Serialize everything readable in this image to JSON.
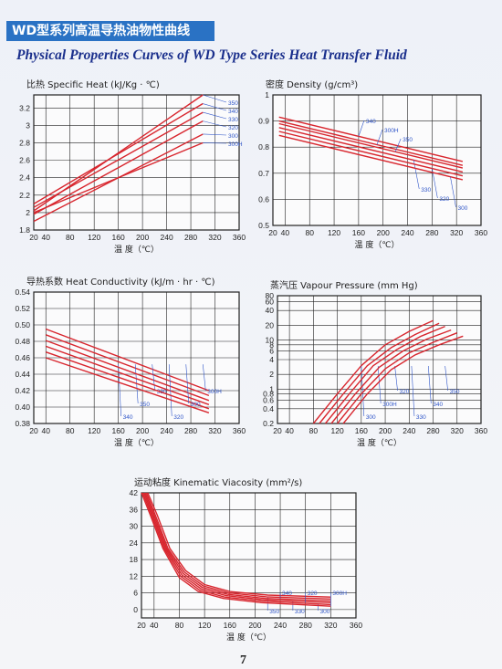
{
  "header": {
    "cn_title": "WD型系列高温导热油物性曲线",
    "en_title": "Physical Properties Curves of WD Type Series Heat Transfer Fluid"
  },
  "page_number": "7",
  "colors": {
    "accent": "#2a72c4",
    "curve": "#d8262e",
    "grid": "#222222",
    "annotation": "#2f55c8",
    "title_text": "#1a2f8c"
  },
  "chart_data": [
    {
      "id": "specific-heat",
      "type": "line",
      "title": "比热 Specific Heat (kJ/Kg · ℃)",
      "xlabel": "温 度（℃）",
      "xticks": [
        20,
        40,
        80,
        120,
        160,
        200,
        240,
        280,
        320,
        360
      ],
      "xlim": [
        20,
        360
      ],
      "yticks": [
        1.8,
        2.0,
        2.2,
        2.4,
        2.6,
        2.8,
        3.0,
        3.2
      ],
      "ylim": [
        1.8,
        3.35
      ],
      "scale": "linear",
      "series": [
        {
          "name": "350",
          "x": [
            20,
            300
          ],
          "y": [
            2.02,
            3.35
          ]
        },
        {
          "name": "340",
          "x": [
            20,
            300
          ],
          "y": [
            2.1,
            3.25
          ]
        },
        {
          "name": "330",
          "x": [
            20,
            300
          ],
          "y": [
            2.06,
            3.15
          ]
        },
        {
          "name": "320",
          "x": [
            20,
            300
          ],
          "y": [
            1.98,
            3.05
          ]
        },
        {
          "name": "300",
          "x": [
            20,
            300
          ],
          "y": [
            1.9,
            2.9
          ]
        },
        {
          "name": "300H",
          "x": [
            20,
            300
          ],
          "y": [
            2.0,
            2.8
          ]
        }
      ]
    },
    {
      "id": "density",
      "type": "line",
      "title": "密度 Density (g/cm³)",
      "xlabel": "温 度（℃）",
      "xticks": [
        20,
        40,
        80,
        120,
        160,
        200,
        240,
        280,
        320,
        360
      ],
      "xlim": [
        20,
        360
      ],
      "yticks": [
        0.5,
        0.6,
        0.7,
        0.8,
        0.9,
        1.0
      ],
      "ylim": [
        0.5,
        1.0
      ],
      "scale": "linear",
      "series": [
        {
          "name": "340",
          "x": [
            30,
            330
          ],
          "y": [
            0.915,
            0.745
          ]
        },
        {
          "name": "300H",
          "x": [
            30,
            330
          ],
          "y": [
            0.9,
            0.73
          ]
        },
        {
          "name": "350",
          "x": [
            30,
            330
          ],
          "y": [
            0.89,
            0.72
          ]
        },
        {
          "name": "330",
          "x": [
            30,
            330
          ],
          "y": [
            0.875,
            0.705
          ]
        },
        {
          "name": "320",
          "x": [
            30,
            330
          ],
          "y": [
            0.86,
            0.69
          ]
        },
        {
          "name": "300",
          "x": [
            30,
            330
          ],
          "y": [
            0.845,
            0.675
          ]
        }
      ]
    },
    {
      "id": "heat-conductivity",
      "type": "line",
      "title": "导热系数 Heat Conductivity (kJ/m · hr · ℃)",
      "xlabel": "温 度（℃）",
      "xticks": [
        20,
        40,
        80,
        120,
        160,
        200,
        240,
        280,
        320,
        360
      ],
      "xlim": [
        20,
        360
      ],
      "yticks": [
        0.38,
        0.4,
        0.42,
        0.44,
        0.46,
        0.48,
        0.5,
        0.52,
        0.54
      ],
      "ylim": [
        0.38,
        0.54
      ],
      "scale": "linear",
      "series": [
        {
          "name": "340",
          "x": [
            40,
            310
          ],
          "y": [
            0.495,
            0.42
          ]
        },
        {
          "name": "350",
          "x": [
            40,
            310
          ],
          "y": [
            0.488,
            0.414
          ]
        },
        {
          "name": "330",
          "x": [
            40,
            310
          ],
          "y": [
            0.481,
            0.408
          ]
        },
        {
          "name": "320",
          "x": [
            40,
            310
          ],
          "y": [
            0.474,
            0.403
          ]
        },
        {
          "name": "300",
          "x": [
            40,
            310
          ],
          "y": [
            0.467,
            0.398
          ]
        },
        {
          "name": "300H",
          "x": [
            40,
            310
          ],
          "y": [
            0.46,
            0.393
          ]
        }
      ]
    },
    {
      "id": "vapour-pressure",
      "type": "line",
      "title": "蒸汽压 Vapour Pressure (mm Hg)",
      "xlabel": "温 度（℃）",
      "xticks": [
        20,
        40,
        80,
        120,
        160,
        200,
        240,
        280,
        320,
        360
      ],
      "xlim": [
        20,
        360
      ],
      "yticks": [
        0.2,
        0.4,
        0.6,
        0.8,
        1,
        2,
        4,
        6,
        8,
        10,
        20,
        40,
        60,
        80
      ],
      "ytick_labels": [
        "0.2",
        "0.4",
        "0.6",
        "0.8",
        "1",
        "2",
        "4",
        "6",
        "8",
        "10",
        "20",
        "40",
        "60",
        "80"
      ],
      "ylim": [
        0.2,
        80
      ],
      "scale": "log",
      "series": [
        {
          "name": "300",
          "x": [
            80,
            120,
            160,
            200,
            240,
            280
          ],
          "y": [
            0.2,
            0.8,
            3,
            8,
            15,
            25
          ]
        },
        {
          "name": "300H",
          "x": [
            90,
            130,
            170,
            210,
            250,
            290
          ],
          "y": [
            0.2,
            0.8,
            3,
            7,
            13,
            22
          ]
        },
        {
          "name": "320",
          "x": [
            100,
            140,
            180,
            220,
            260,
            300
          ],
          "y": [
            0.2,
            0.8,
            3,
            6.5,
            12,
            19
          ]
        },
        {
          "name": "330",
          "x": [
            110,
            150,
            190,
            230,
            270,
            310
          ],
          "y": [
            0.2,
            0.8,
            2.8,
            6,
            10.5,
            16
          ]
        },
        {
          "name": "340",
          "x": [
            120,
            160,
            200,
            240,
            280,
            320
          ],
          "y": [
            0.2,
            0.8,
            2.6,
            5.5,
            9,
            14
          ]
        },
        {
          "name": "350",
          "x": [
            130,
            170,
            210,
            250,
            290,
            330
          ],
          "y": [
            0.2,
            0.8,
            2.5,
            5,
            8,
            12
          ]
        }
      ]
    },
    {
      "id": "kinematic-viscosity",
      "type": "line",
      "title": "运动粘度 Kinematic Viacosity (mm²/s)",
      "xlabel": "温 度（℃）",
      "xticks": [
        20,
        40,
        80,
        120,
        160,
        200,
        240,
        280,
        320,
        360
      ],
      "xlim": [
        20,
        360
      ],
      "yticks": [
        0,
        6,
        12,
        18,
        24,
        30,
        36,
        42
      ],
      "ylim": [
        -3,
        42
      ],
      "scale": "linear",
      "series": [
        {
          "name": "350",
          "x": [
            30,
            45,
            65,
            90,
            120,
            160,
            220,
            320
          ],
          "y": [
            42,
            34,
            22,
            14,
            9,
            6.5,
            5.2,
            4.5
          ]
        },
        {
          "name": "340",
          "x": [
            28,
            42,
            62,
            88,
            118,
            158,
            218,
            320
          ],
          "y": [
            42,
            34,
            22,
            13.5,
            8.5,
            6,
            4.6,
            3.8
          ]
        },
        {
          "name": "330",
          "x": [
            26,
            40,
            60,
            86,
            116,
            156,
            216,
            320
          ],
          "y": [
            42,
            34,
            22,
            13,
            8,
            5.5,
            4.0,
            3.1
          ]
        },
        {
          "name": "320",
          "x": [
            24,
            38,
            58,
            84,
            114,
            154,
            214,
            320
          ],
          "y": [
            42,
            34,
            22,
            12.5,
            7.5,
            5,
            3.5,
            2.5
          ]
        },
        {
          "name": "300",
          "x": [
            22,
            36,
            56,
            82,
            112,
            152,
            212,
            320
          ],
          "y": [
            42,
            34,
            22,
            12,
            7,
            4.5,
            3.0,
            1.8
          ]
        },
        {
          "name": "300H",
          "x": [
            20,
            34,
            54,
            80,
            110,
            150,
            210,
            320
          ],
          "y": [
            42,
            34,
            22,
            11.5,
            6.5,
            4,
            2.5,
            1.2
          ]
        }
      ]
    }
  ]
}
